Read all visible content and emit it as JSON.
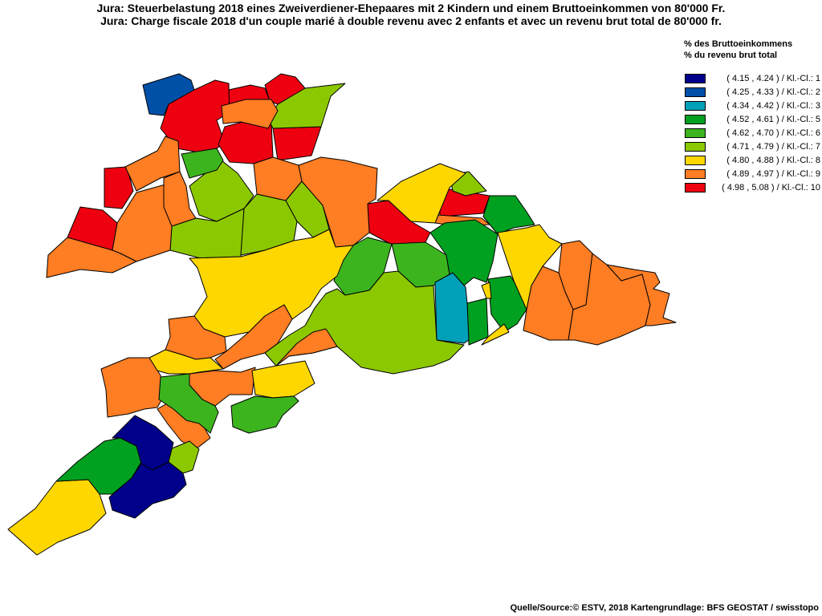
{
  "title": {
    "de": "Jura: Steuerbelastung 2018 eines Zweiverdiener-Ehepaares mit 2 Kindern und einem Bruttoeinkommen von 80'000 Fr.",
    "fr": "Jura: Charge fiscale 2018 d'un couple marié à double revenu avec 2 enfants et avec un revenu brut total de 80'000 fr."
  },
  "legend": {
    "heading_de": "% des Bruttoeinkommens",
    "heading_fr": "% du revenu brut total",
    "classes": [
      {
        "class": 1,
        "label": "( 4.15 , 4.24 ) / Kl.-Cl.: 1",
        "color": "#00008b"
      },
      {
        "class": 2,
        "label": "( 4.25 , 4.33 ) / Kl.-Cl.: 2",
        "color": "#0050a8"
      },
      {
        "class": 3,
        "label": "( 4.34 , 4.42 ) / Kl.-Cl.: 3",
        "color": "#00a0b8"
      },
      {
        "class": 5,
        "label": "( 4.52 , 4.61 ) / Kl.-Cl.: 5",
        "color": "#00a020"
      },
      {
        "class": 6,
        "label": "( 4.62 , 4.70 ) / Kl.-Cl.: 6",
        "color": "#3cb41e"
      },
      {
        "class": 7,
        "label": "( 4.71 , 4.79 ) / Kl.-Cl.: 7",
        "color": "#8cc800"
      },
      {
        "class": 8,
        "label": "( 4.80 , 4.88 ) / Kl.-Cl.: 8",
        "color": "#ffd700"
      },
      {
        "class": 9,
        "label": "( 4.89 , 4.97 ) / Kl.-Cl.: 9",
        "color": "#ff7d23"
      },
      {
        "class": 10,
        "label": "( 4.98 , 5.08 ) / Kl.-Cl.: 10",
        "color": "#ee0010"
      }
    ]
  },
  "source": "Quelle/Source:© ESTV, 2018 Kartengrundlage: BFS GEOSTAT / swisstopo"
}
